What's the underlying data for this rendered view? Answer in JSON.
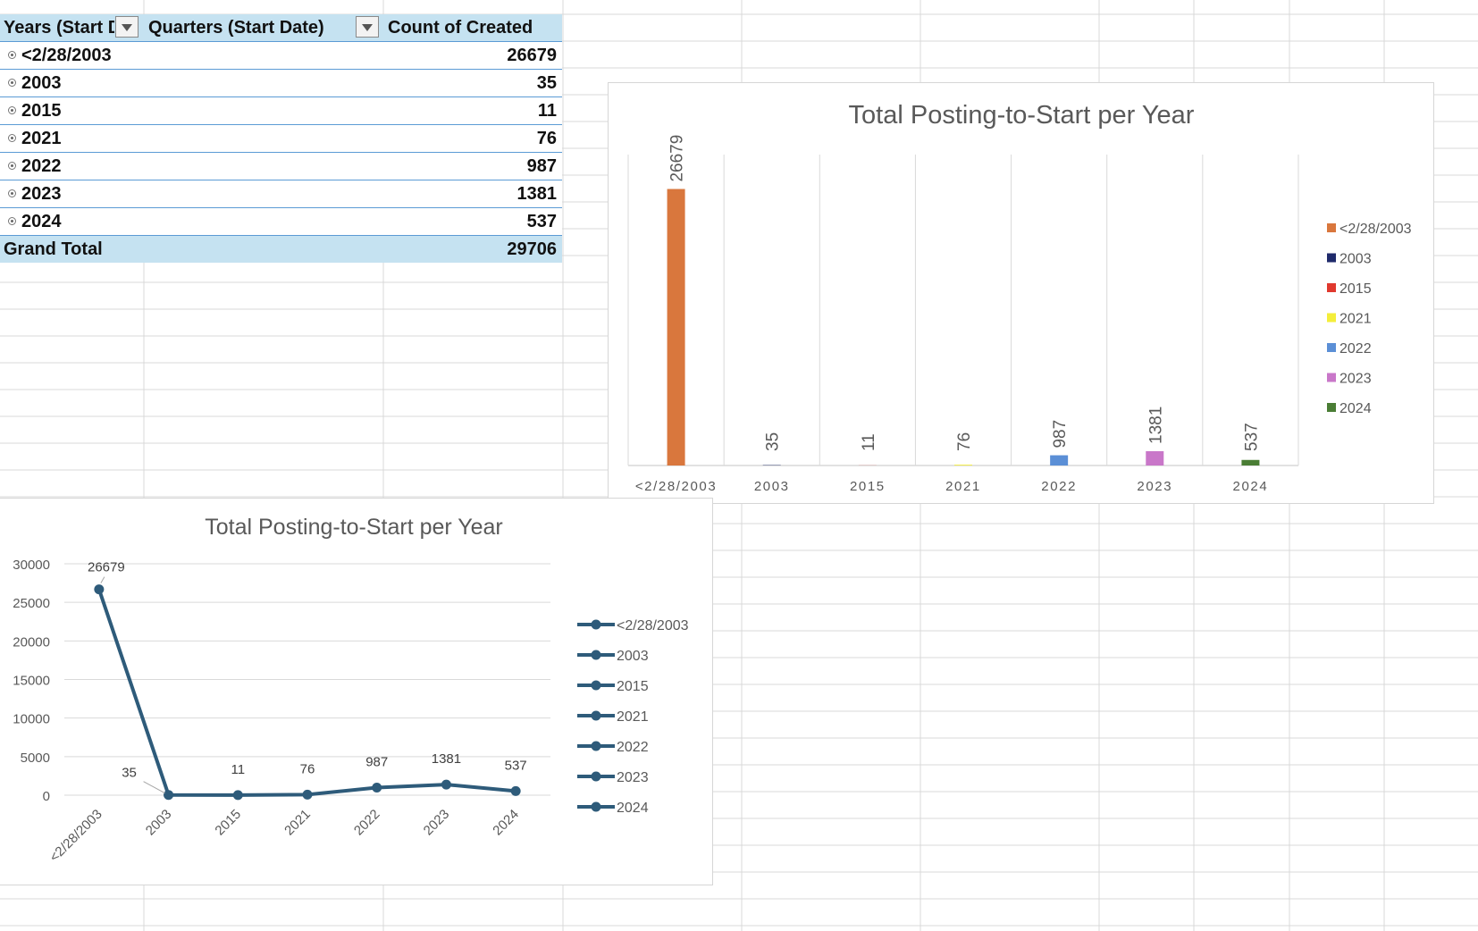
{
  "pivot": {
    "headers": [
      "Years (Start Date)",
      "Quarters (Start Date)",
      "Count of Created"
    ],
    "rows": [
      {
        "label": "<2/28/2003",
        "value": "26679"
      },
      {
        "label": "2003",
        "value": "35"
      },
      {
        "label": "2015",
        "value": "11"
      },
      {
        "label": "2021",
        "value": "76"
      },
      {
        "label": "2022",
        "value": "987"
      },
      {
        "label": "2023",
        "value": "1381"
      },
      {
        "label": "2024",
        "value": "537"
      }
    ],
    "grand_total_label": "Grand Total",
    "grand_total_value": "29706"
  },
  "chart_data": [
    {
      "type": "bar",
      "title": "Total Posting-to-Start per Year",
      "categories": [
        "<2/28/2003",
        "2003",
        "2015",
        "2021",
        "2022",
        "2023",
        "2024"
      ],
      "series": [
        {
          "name": "<2/28/2003",
          "color": "#d9773d",
          "values": [
            26679,
            null,
            null,
            null,
            null,
            null,
            null
          ]
        },
        {
          "name": "2003",
          "color": "#1f2a6b",
          "values": [
            null,
            35,
            null,
            null,
            null,
            null,
            null
          ]
        },
        {
          "name": "2015",
          "color": "#e0392e",
          "values": [
            null,
            null,
            11,
            null,
            null,
            null,
            null
          ]
        },
        {
          "name": "2021",
          "color": "#f4ee3a",
          "values": [
            null,
            null,
            null,
            76,
            null,
            null,
            null
          ]
        },
        {
          "name": "2022",
          "color": "#5b8fd6",
          "values": [
            null,
            null,
            null,
            null,
            987,
            null,
            null
          ]
        },
        {
          "name": "2023",
          "color": "#c977c9",
          "values": [
            null,
            null,
            null,
            null,
            null,
            1381,
            null
          ]
        },
        {
          "name": "2024",
          "color": "#4a7d35",
          "values": [
            null,
            null,
            null,
            null,
            null,
            null,
            537
          ]
        }
      ],
      "data_labels": [
        "26679",
        "35",
        "11",
        "76",
        "987",
        "1381",
        "537"
      ],
      "ylim": [
        0,
        30000
      ],
      "grid": "vertical",
      "legend": "right"
    },
    {
      "type": "line",
      "title": "Total Posting-to-Start per Year",
      "categories": [
        "<2/28/2003",
        "2003",
        "2015",
        "2021",
        "2022",
        "2023",
        "2024"
      ],
      "values": [
        26679,
        35,
        11,
        76,
        987,
        1381,
        537
      ],
      "data_labels": [
        "26679",
        "35",
        "11",
        "76",
        "987",
        "1381",
        "537"
      ],
      "legend_entries": [
        "<2/28/2003",
        "2003",
        "2015",
        "2021",
        "2022",
        "2023",
        "2024"
      ],
      "color": "#2e5b7a",
      "yticks": [
        "30000",
        "25000",
        "20000",
        "15000",
        "10000",
        "5000",
        "0"
      ],
      "ylim": [
        0,
        30000
      ],
      "grid": "horizontal",
      "legend": "right"
    }
  ]
}
